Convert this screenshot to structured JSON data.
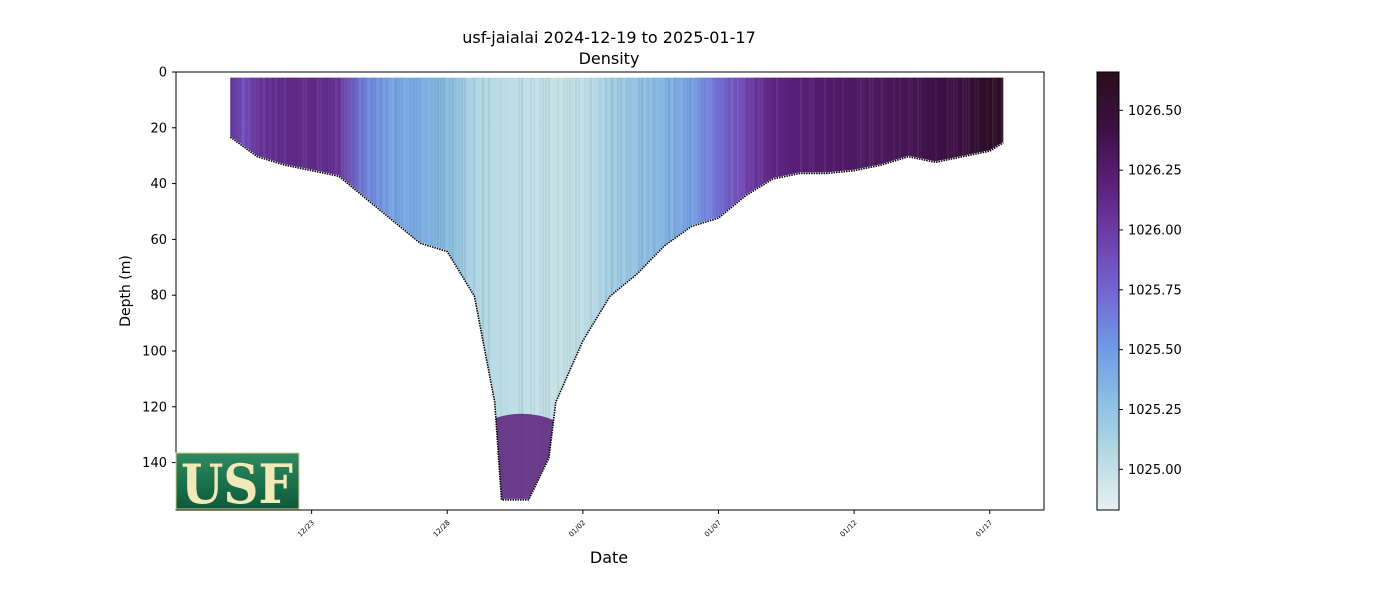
{
  "chart_data": {
    "type": "heatmap",
    "title": "usf-jaialai 2024-12-19 to 2025-01-17",
    "subtitle": "Density",
    "xlabel": "Date",
    "ylabel": "Depth (m)",
    "x_ticks": [
      "12/23",
      "12/28",
      "01/02",
      "01/07",
      "01/12",
      "01/17"
    ],
    "x_tick_dates": [
      "2024-12-23",
      "2024-12-28",
      "2025-01-02",
      "2025-01-07",
      "2025-01-12",
      "2025-01-17"
    ],
    "xlim": [
      "2024-12-18",
      "2025-01-19"
    ],
    "y_ticks": [
      0,
      20,
      40,
      60,
      80,
      100,
      120,
      140
    ],
    "ylim": [
      157,
      0
    ],
    "y_inverted": true,
    "colorbar": {
      "ticks": [
        1025.0,
        1025.25,
        1025.5,
        1025.75,
        1026.0,
        1026.25,
        1026.5
      ],
      "tick_labels": [
        "1025.00",
        "1025.25",
        "1025.50",
        "1025.75",
        "1026.00",
        "1026.25",
        "1026.50"
      ],
      "range": [
        1024.83,
        1026.66
      ],
      "colormap": "dense",
      "stops": [
        "#e6f1f1",
        "#b6dae3",
        "#8bbfe3",
        "#6f98e4",
        "#7465d4",
        "#6e3ea8",
        "#5a1f78",
        "#3b1040",
        "#2a0d1e"
      ]
    },
    "grid": false,
    "profile_bottom": [
      {
        "date": "2024-12-20",
        "depth": 23
      },
      {
        "date": "2024-12-21",
        "depth": 30
      },
      {
        "date": "2024-12-22",
        "depth": 33
      },
      {
        "date": "2024-12-23",
        "depth": 35
      },
      {
        "date": "2024-12-24",
        "depth": 37
      },
      {
        "date": "2024-12-25",
        "depth": 45
      },
      {
        "date": "2024-12-26",
        "depth": 53
      },
      {
        "date": "2024-12-27",
        "depth": 61
      },
      {
        "date": "2024-12-28",
        "depth": 64
      },
      {
        "date": "2024-12-29",
        "depth": 80
      },
      {
        "date": "2024-12-29T18:00",
        "depth": 118
      },
      {
        "date": "2024-12-30",
        "depth": 153
      },
      {
        "date": "2024-12-31",
        "depth": 153
      },
      {
        "date": "2024-12-31T18:00",
        "depth": 138
      },
      {
        "date": "2025-01-01",
        "depth": 118
      },
      {
        "date": "2025-01-02",
        "depth": 96
      },
      {
        "date": "2025-01-03",
        "depth": 80
      },
      {
        "date": "2025-01-04",
        "depth": 72
      },
      {
        "date": "2025-01-05",
        "depth": 62
      },
      {
        "date": "2025-01-06",
        "depth": 55
      },
      {
        "date": "2025-01-07",
        "depth": 52
      },
      {
        "date": "2025-01-08",
        "depth": 44
      },
      {
        "date": "2025-01-09",
        "depth": 38
      },
      {
        "date": "2025-01-10",
        "depth": 36
      },
      {
        "date": "2025-01-11",
        "depth": 36
      },
      {
        "date": "2025-01-12",
        "depth": 35
      },
      {
        "date": "2025-01-13",
        "depth": 33
      },
      {
        "date": "2025-01-14",
        "depth": 30
      },
      {
        "date": "2025-01-15",
        "depth": 32
      },
      {
        "date": "2025-01-16",
        "depth": 30
      },
      {
        "date": "2025-01-17",
        "depth": 28
      },
      {
        "date": "2025-01-17T12:00",
        "depth": 25
      }
    ],
    "profile_top_depth": 2,
    "data_start": "2024-12-20",
    "data_end": "2025-01-17T12:00",
    "density_by_date": [
      {
        "date": "2024-12-20",
        "density": 1026.05
      },
      {
        "date": "2024-12-20T12:00",
        "density": 1025.85
      },
      {
        "date": "2024-12-21",
        "density": 1026.05
      },
      {
        "date": "2024-12-22",
        "density": 1026.1
      },
      {
        "date": "2024-12-23",
        "density": 1026.12
      },
      {
        "date": "2024-12-24",
        "density": 1026.05
      },
      {
        "date": "2024-12-25",
        "density": 1025.6
      },
      {
        "date": "2024-12-26",
        "density": 1025.45
      },
      {
        "date": "2024-12-27",
        "density": 1025.4
      },
      {
        "date": "2024-12-28",
        "density": 1025.3
      },
      {
        "date": "2024-12-29",
        "density": 1025.1
      },
      {
        "date": "2024-12-30",
        "density": 1025.05
      },
      {
        "date": "2024-12-31",
        "density": 1025.0
      },
      {
        "date": "2025-01-01",
        "density": 1024.98
      },
      {
        "date": "2025-01-02",
        "density": 1025.0
      },
      {
        "date": "2025-01-03",
        "density": 1025.15
      },
      {
        "date": "2025-01-04",
        "density": 1025.25
      },
      {
        "date": "2025-01-05",
        "density": 1025.35
      },
      {
        "date": "2025-01-06",
        "density": 1025.45
      },
      {
        "date": "2025-01-07",
        "density": 1025.7
      },
      {
        "date": "2025-01-08",
        "density": 1025.95
      },
      {
        "date": "2025-01-09",
        "density": 1026.15
      },
      {
        "date": "2025-01-10",
        "density": 1026.2
      },
      {
        "date": "2025-01-11",
        "density": 1026.25
      },
      {
        "date": "2025-01-12",
        "density": 1026.28
      },
      {
        "date": "2025-01-13",
        "density": 1026.3
      },
      {
        "date": "2025-01-14",
        "density": 1026.35
      },
      {
        "date": "2025-01-15",
        "density": 1026.4
      },
      {
        "date": "2025-01-16",
        "density": 1026.45
      },
      {
        "date": "2025-01-17",
        "density": 1026.6
      }
    ],
    "deep_layer": {
      "start": "2024-12-29T12:00",
      "end": "2025-01-01",
      "depth_from": 125,
      "density": 1026.2
    }
  },
  "logo": {
    "text": "USF",
    "bg_color": "#0e6b46",
    "border_color": "#d9cf8f"
  }
}
